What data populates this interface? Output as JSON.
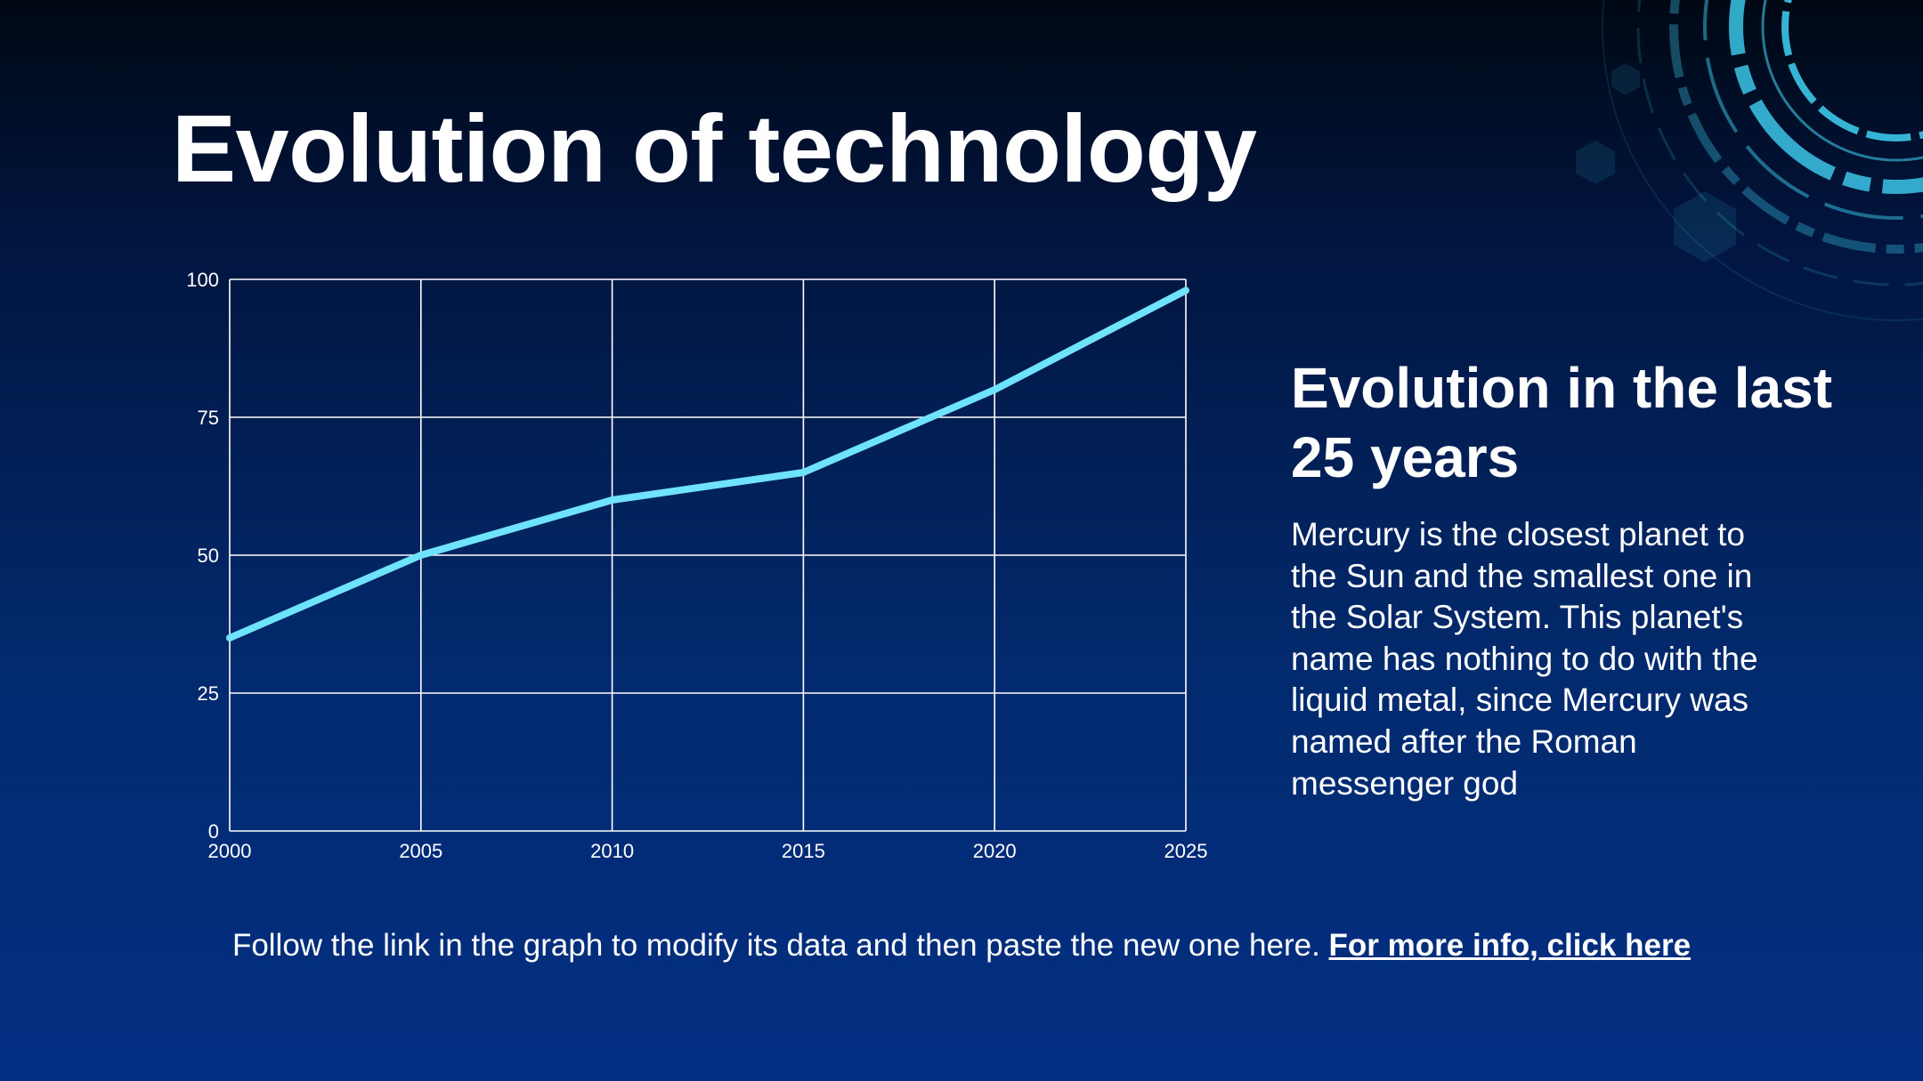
{
  "slide": {
    "title": "Evolution of technology",
    "side_heading": "Evolution in the last 25 years",
    "side_body": "Mercury is the closest planet to the Sun and the smallest one in the Solar System. This planet's name has nothing to do with the liquid metal, since Mercury was named after the Roman messenger god",
    "footer_text": "Follow the link in the graph to modify its data and then paste the new one here. ",
    "footer_link": "For more info, click here"
  },
  "colors": {
    "line": "#6fe3fb",
    "grid": "#ffffff",
    "accent": "#3cc6e8"
  },
  "decoration": {
    "icon": "circuit-ring-icon"
  },
  "chart_data": {
    "type": "line",
    "x": [
      2000,
      2005,
      2010,
      2015,
      2020,
      2025
    ],
    "series": [
      {
        "values": [
          35,
          50,
          60,
          65,
          80,
          98
        ]
      }
    ],
    "xticks": [
      "2000",
      "2005",
      "2010",
      "2015",
      "2020",
      "2025"
    ],
    "yticks": [
      "0",
      "25",
      "50",
      "75",
      "100"
    ],
    "xlim": [
      2000,
      2025
    ],
    "ylim": [
      0,
      100
    ],
    "grid": true,
    "legend": "none"
  }
}
